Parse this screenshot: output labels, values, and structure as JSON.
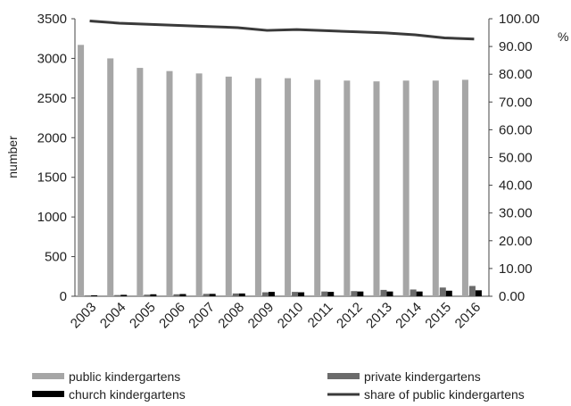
{
  "chart_data": {
    "type": "bar",
    "categories": [
      "2003",
      "2004",
      "2005",
      "2006",
      "2007",
      "2008",
      "2009",
      "2010",
      "2011",
      "2012",
      "2013",
      "2014",
      "2015",
      "2016"
    ],
    "series": [
      {
        "name": "public kindergartens",
        "axis": "left",
        "color": "#a6a6a6",
        "values": [
          3170,
          3000,
          2880,
          2840,
          2810,
          2770,
          2750,
          2750,
          2730,
          2720,
          2710,
          2720,
          2720,
          2730
        ]
      },
      {
        "name": "private kindergartens",
        "axis": "left",
        "color": "#6b6b6b",
        "values": [
          10,
          15,
          20,
          25,
          30,
          35,
          50,
          55,
          60,
          65,
          80,
          85,
          110,
          130
        ]
      },
      {
        "name": "church kindergartens",
        "axis": "left",
        "color": "#000000",
        "values": [
          12,
          18,
          25,
          28,
          30,
          35,
          55,
          50,
          55,
          60,
          60,
          60,
          70,
          75
        ]
      },
      {
        "name": "share of public kindergartens",
        "axis": "right",
        "type": "line",
        "color": "#3a3a3a",
        "values": [
          99.2,
          98.4,
          98.0,
          97.6,
          97.2,
          96.8,
          95.8,
          96.1,
          95.7,
          95.3,
          94.9,
          94.2,
          93.1,
          92.7
        ]
      }
    ],
    "ylabel": "number",
    "y2label": "%",
    "ylim": [
      0,
      3500
    ],
    "y2lim": [
      0,
      100
    ],
    "yticks": [
      "0",
      "500",
      "1000",
      "1500",
      "2000",
      "2500",
      "3000",
      "3500"
    ],
    "y2ticks": [
      "0.00",
      "10.00",
      "20.00",
      "30.00",
      "40.00",
      "50.00",
      "60.00",
      "70.00",
      "80.00",
      "90.00",
      "100.00"
    ],
    "legend_position": "bottom",
    "grid": false
  }
}
